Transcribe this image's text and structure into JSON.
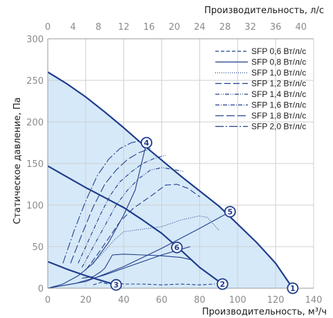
{
  "chart_data": {
    "type": "line",
    "xlabel": "Производительность, м³/ч",
    "x2label": "Производительность, л/с",
    "ylabel": "Статическое давление, Па",
    "xlim": [
      0,
      140
    ],
    "x2lim": [
      0,
      42
    ],
    "ylim": [
      0,
      300
    ],
    "x_ticks": [
      "0",
      "20",
      "40",
      "60",
      "80",
      "100",
      "120",
      "140"
    ],
    "x2_ticks": [
      "0",
      "4",
      "8",
      "12",
      "16",
      "20",
      "24",
      "28",
      "32",
      "36",
      "40"
    ],
    "y_ticks": [
      "0",
      "50",
      "100",
      "150",
      "200",
      "250",
      "300"
    ],
    "grid": true,
    "legend_position": "top-right",
    "colors": {
      "curve": "#1f3d8c",
      "fill": "#d6e9f8",
      "point": "#1f3d8c",
      "grid": "#cfcfcf"
    },
    "fan_curves": [
      {
        "x": [
          0,
          10,
          20,
          30,
          40,
          50,
          60,
          70,
          80,
          90,
          100,
          110,
          120,
          129
        ],
        "y": [
          260,
          246,
          230,
          212,
          193,
          173,
          154,
          135,
          117,
          99,
          77,
          55,
          30,
          0
        ]
      },
      {
        "x": [
          0,
          10,
          20,
          30,
          40,
          50,
          60,
          70,
          80,
          92
        ],
        "y": [
          147,
          134,
          121,
          109,
          97,
          82,
          66,
          46,
          25,
          5
        ]
      },
      {
        "x": [
          0,
          10,
          20,
          30,
          36
        ],
        "y": [
          32,
          23,
          15,
          8,
          4
        ]
      }
    ],
    "system_curves": [
      {
        "x": [
          0,
          8,
          16,
          24,
          32,
          40,
          46,
          52
        ],
        "y": [
          0,
          5,
          15,
          30,
          55,
          88,
          118,
          175
        ]
      },
      {
        "x": [
          0,
          20,
          40,
          60,
          80,
          96
        ],
        "y": [
          0,
          8,
          26,
          48,
          72,
          92
        ]
      },
      {
        "x": [
          0,
          15,
          30,
          45,
          60,
          75
        ],
        "y": [
          0,
          6,
          16,
          28,
          40,
          50
        ]
      }
    ],
    "series": [
      {
        "name": "SFP 0,6 Вт/л/с",
        "dash": "5,3",
        "x": [
          24,
          28,
          32,
          36,
          40,
          50,
          60,
          70,
          80,
          88
        ],
        "y": [
          4,
          7,
          5,
          7,
          5,
          5,
          4,
          5,
          4,
          5
        ]
      },
      {
        "name": "SFP 0,8 Вт/л/с",
        "dash": "",
        "x": [
          18,
          24,
          28,
          30,
          32,
          34,
          40,
          50,
          60,
          70,
          76
        ],
        "y": [
          12,
          14,
          20,
          24,
          32,
          40,
          41,
          40,
          39,
          37,
          34
        ]
      },
      {
        "name": "SFP 1,0 Вт/л/с",
        "dash": "1,2",
        "x": [
          22,
          26,
          30,
          35,
          40,
          50,
          60,
          70,
          80,
          84,
          90
        ],
        "y": [
          28,
          35,
          45,
          58,
          68,
          71,
          74,
          82,
          87,
          85,
          70
        ]
      },
      {
        "name": "SFP 1,2 Вт/л/с",
        "dash": "9,4",
        "x": [
          20,
          26,
          32,
          38,
          45,
          55,
          62,
          68,
          74,
          80
        ],
        "y": [
          22,
          40,
          60,
          80,
          96,
          112,
          124,
          125,
          120,
          110
        ]
      },
      {
        "name": "SFP 1,4 Вт/л/с",
        "dash": "6,2,1,2,1,2",
        "x": [
          18,
          24,
          30,
          36,
          42,
          48,
          54,
          60,
          66,
          72
        ],
        "y": [
          25,
          50,
          75,
          100,
          118,
          132,
          142,
          145,
          143,
          140
        ]
      },
      {
        "name": "SFP 1,6 Вт/л/с",
        "dash": "6,2,1,2",
        "x": [
          16,
          22,
          28,
          33,
          38,
          44,
          50,
          56,
          62
        ],
        "y": [
          30,
          60,
          90,
          112,
          128,
          140,
          150,
          156,
          160
        ]
      },
      {
        "name": "SFP 1,8 Вт/л/с",
        "dash": "12,4",
        "x": [
          12,
          18,
          24,
          30,
          36,
          42,
          48,
          54
        ],
        "y": [
          30,
          65,
          98,
          125,
          142,
          155,
          163,
          168
        ]
      },
      {
        "name": "SFP 2,0 Вт/л/с",
        "dash": "12,3,2,3",
        "x": [
          8,
          14,
          20,
          26,
          32,
          38,
          44,
          50
        ],
        "y": [
          30,
          70,
          105,
          135,
          155,
          168,
          175,
          178
        ]
      }
    ],
    "operating_points": [
      {
        "label": "1",
        "x": 129,
        "y": 0
      },
      {
        "label": "2",
        "x": 92,
        "y": 5
      },
      {
        "label": "3",
        "x": 36,
        "y": 4
      },
      {
        "label": "4",
        "x": 52,
        "y": 175
      },
      {
        "label": "5",
        "x": 96,
        "y": 92
      },
      {
        "label": "6",
        "x": 68,
        "y": 49
      }
    ]
  }
}
